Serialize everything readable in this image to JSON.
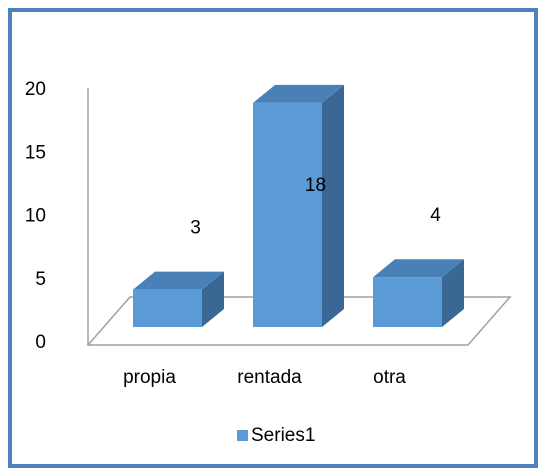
{
  "chart_data": {
    "type": "bar3d",
    "categories": [
      "propia",
      "rentada",
      "otra"
    ],
    "series": [
      {
        "name": "Series1",
        "color": "#5b9bd5",
        "values": [
          3,
          18,
          4
        ]
      }
    ],
    "ylim": [
      0,
      20
    ],
    "yticks": [
      0,
      5,
      10,
      15,
      20
    ],
    "grid": false,
    "legend": "bottom"
  }
}
